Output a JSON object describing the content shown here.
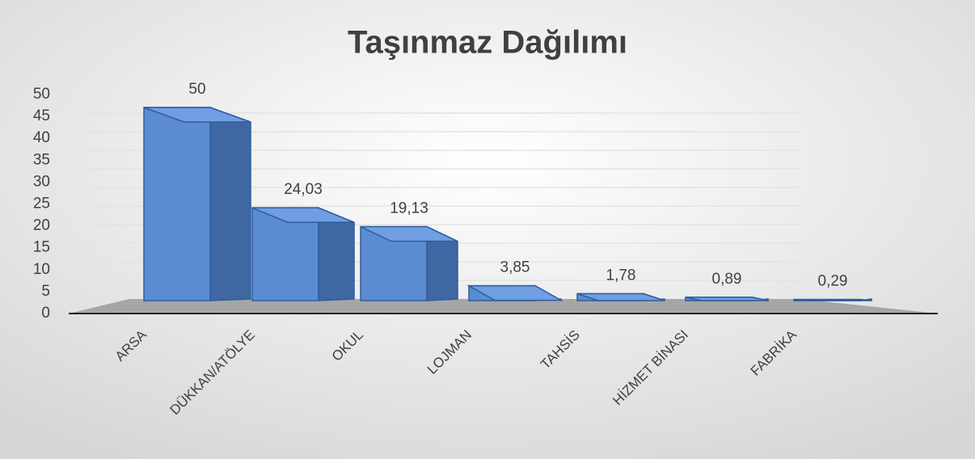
{
  "chart_data": {
    "type": "bar3d",
    "title": "Taşınmaz Dağılımı",
    "categories": [
      "ARSA",
      "DÜKKAN/ATÖLYE",
      "OKUL",
      "LOJMAN",
      "TAHSİS",
      "HİZMET BİNASI",
      "FABRİKA"
    ],
    "values": [
      50,
      24.03,
      19.13,
      3.85,
      1.78,
      0.89,
      0.29
    ],
    "value_labels": [
      "50",
      "24,03",
      "19,13",
      "3,85",
      "1,78",
      "0,89",
      "0,29"
    ],
    "color": "#5b8bd0",
    "ylim": [
      0,
      50
    ],
    "yticks": [
      0,
      5,
      10,
      15,
      20,
      25,
      30,
      35,
      40,
      45,
      50
    ],
    "grid": true
  }
}
